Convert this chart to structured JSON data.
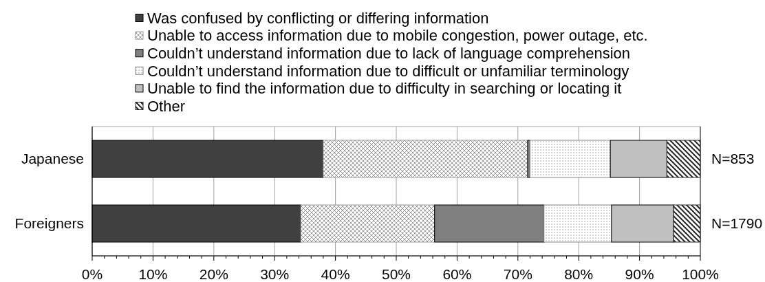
{
  "chart_data": {
    "type": "bar",
    "orientation": "horizontal",
    "stacked": true,
    "categories": [
      "Japanese",
      "Foreigners"
    ],
    "series": [
      {
        "name": "Was confused by conflicting or differing information",
        "color": "#404040",
        "values": [
          38.0,
          34.3
        ]
      },
      {
        "name": "Unable to access information due to mobile congestion, power outage, etc.",
        "color": "#999999",
        "values": [
          33.6,
          22.0
        ]
      },
      {
        "name": "Couldn’t understand information due to lack of language comprehension",
        "color": "#808080",
        "values": [
          0.4,
          18.0
        ]
      },
      {
        "name": "Couldn’t understand information due to difficult or unfamiliar terminology",
        "color": "#888888",
        "values": [
          13.2,
          11.1
        ]
      },
      {
        "name": "Unable to find the information due to difficulty in searching or locating it",
        "color": "#c0c0c0",
        "values": [
          9.3,
          10.2
        ]
      },
      {
        "name": "Other",
        "color": "#262626",
        "values": [
          5.5,
          4.4
        ]
      }
    ],
    "xlim": [
      0,
      100
    ],
    "xticks": [
      {
        "value": 0,
        "label": "0%"
      },
      {
        "value": 2,
        "label": null
      },
      {
        "value": 4,
        "label": null
      },
      {
        "value": 6,
        "label": null
      },
      {
        "value": 8,
        "label": null
      },
      {
        "value": 10,
        "label": "10%"
      },
      {
        "value": 12,
        "label": null
      },
      {
        "value": 14,
        "label": null
      },
      {
        "value": 16,
        "label": null
      },
      {
        "value": 18,
        "label": null
      },
      {
        "value": 20,
        "label": "20%"
      },
      {
        "value": 22,
        "label": null
      },
      {
        "value": 24,
        "label": null
      },
      {
        "value": 26,
        "label": null
      },
      {
        "value": 28,
        "label": null
      },
      {
        "value": 30,
        "label": "30%"
      },
      {
        "value": 32,
        "label": null
      },
      {
        "value": 34,
        "label": null
      },
      {
        "value": 36,
        "label": null
      },
      {
        "value": 38,
        "label": null
      },
      {
        "value": 40,
        "label": "40%"
      },
      {
        "value": 42,
        "label": null
      },
      {
        "value": 44,
        "label": null
      },
      {
        "value": 46,
        "label": null
      },
      {
        "value": 48,
        "label": null
      },
      {
        "value": 50,
        "label": "50%"
      },
      {
        "value": 52,
        "label": null
      },
      {
        "value": 54,
        "label": null
      },
      {
        "value": 56,
        "label": null
      },
      {
        "value": 58,
        "label": null
      },
      {
        "value": 60,
        "label": "60%"
      },
      {
        "value": 62,
        "label": null
      },
      {
        "value": 64,
        "label": null
      },
      {
        "value": 66,
        "label": null
      },
      {
        "value": 68,
        "label": null
      },
      {
        "value": 70,
        "label": "70%"
      },
      {
        "value": 72,
        "label": null
      },
      {
        "value": 74,
        "label": null
      },
      {
        "value": 76,
        "label": null
      },
      {
        "value": 78,
        "label": null
      },
      {
        "value": 80,
        "label": "80%"
      },
      {
        "value": 82,
        "label": null
      },
      {
        "value": 84,
        "label": null
      },
      {
        "value": 86,
        "label": null
      },
      {
        "value": 88,
        "label": null
      },
      {
        "value": 90,
        "label": "90%"
      },
      {
        "value": 92,
        "label": null
      },
      {
        "value": 94,
        "label": null
      },
      {
        "value": 96,
        "label": null
      },
      {
        "value": 98,
        "label": null
      },
      {
        "value": 100,
        "label": "100%"
      }
    ],
    "grid": "x",
    "legend": "top",
    "annotations": [
      "N=853",
      "N=1790"
    ]
  }
}
